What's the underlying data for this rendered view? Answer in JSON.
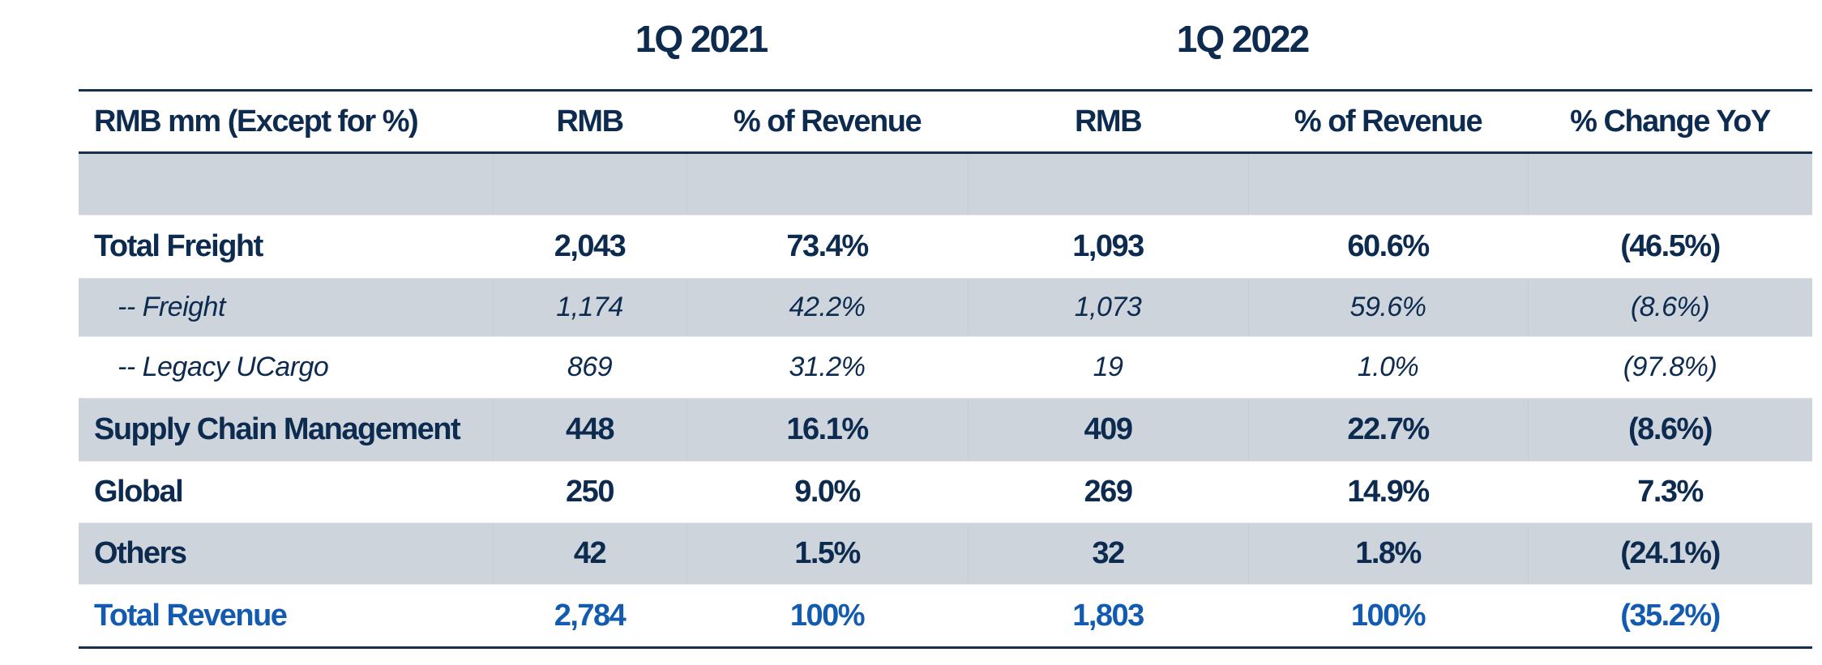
{
  "periods": [
    "1Q 2021",
    "1Q 2022"
  ],
  "header": [
    "RMB mm (Except for %)",
    "RMB",
    "% of Revenue",
    "RMB",
    "% of Revenue",
    "% Change YoY"
  ],
  "rows": [
    {
      "label": "Total Freight",
      "values": [
        "2,043",
        "73.4%",
        "1,093",
        "60.6%",
        "(46.5%)"
      ]
    },
    {
      "label": "-- Freight",
      "values": [
        "1,174",
        "42.2%",
        "1,073",
        "59.6%",
        "(8.6%)"
      ]
    },
    {
      "label": "-- Legacy UCargo",
      "values": [
        "869",
        "31.2%",
        "19",
        "1.0%",
        "(97.8%)"
      ]
    },
    {
      "label": "Supply Chain Management",
      "values": [
        "448",
        "16.1%",
        "409",
        "22.7%",
        "(8.6%)"
      ]
    },
    {
      "label": "Global",
      "values": [
        "250",
        "9.0%",
        "269",
        "14.9%",
        "7.3%"
      ]
    },
    {
      "label": "Others",
      "values": [
        "42",
        "1.5%",
        "32",
        "1.8%",
        "(24.1%)"
      ]
    },
    {
      "label": "Total Revenue",
      "values": [
        "2,784",
        "100%",
        "1,803",
        "100%",
        "(35.2%)"
      ]
    }
  ],
  "colors": {
    "text": "#0d2a4f",
    "total": "#125bb0",
    "band": "#cdd4dc",
    "rule": "#13304f"
  }
}
